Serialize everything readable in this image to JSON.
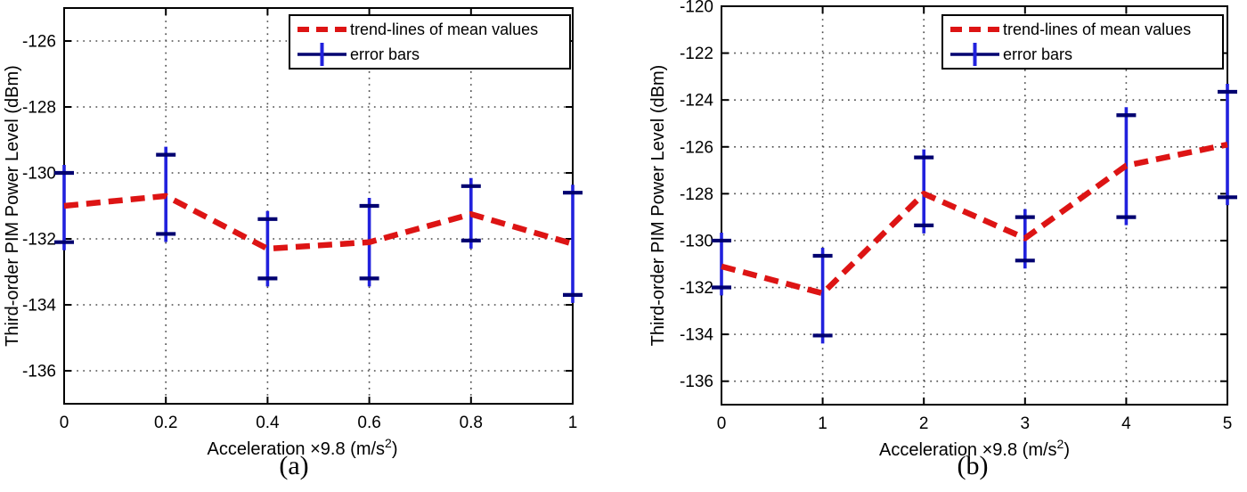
{
  "page": {
    "background": "#ffffff"
  },
  "colors": {
    "trend_red": "#dd1414",
    "errorbar_blue": "#2121dd",
    "errorbar_cap_navy": "#000070",
    "grid_dot": "#4a4a4a",
    "frame_black": "#000000",
    "text_black": "#000000",
    "legend_bg": "#ffffff"
  },
  "chart_data": [
    {
      "type": "line",
      "panel": "a",
      "caption": "(a)",
      "title": "",
      "xlabel": "Acceleration ×9.8 (m/s²)",
      "ylabel": "Third-order PIM Power Level (dBm)",
      "legend_entries": [
        "trend-lines of mean values",
        "error bars"
      ],
      "legend_position": "top-right",
      "grid": "dotted",
      "xlim": [
        0,
        1
      ],
      "ylim": [
        -137,
        -125
      ],
      "xticks": [
        0,
        0.2,
        0.4,
        0.6,
        0.8,
        1
      ],
      "xtick_labels": [
        "0",
        "0.2",
        "0.4",
        "0.6",
        "0.8",
        "1"
      ],
      "yticks": [
        -126,
        -128,
        -130,
        -132,
        -134,
        -136
      ],
      "x": [
        0,
        0.2,
        0.4,
        0.6,
        0.8,
        1
      ],
      "series": [
        {
          "name": "trend-lines of mean values",
          "type": "dashed-line",
          "values": [
            -131.0,
            -130.7,
            -132.3,
            -132.1,
            -131.25,
            -132.15
          ]
        },
        {
          "name": "error bars",
          "type": "errorbar",
          "upper": [
            -130.0,
            -129.45,
            -131.4,
            -131.0,
            -130.4,
            -130.6
          ],
          "lower": [
            -132.1,
            -131.85,
            -133.2,
            -133.2,
            -132.05,
            -133.7
          ]
        }
      ]
    },
    {
      "type": "line",
      "panel": "b",
      "caption": "(b)",
      "title": "",
      "xlabel": "Acceleration ×9.8 (m/s²)",
      "ylabel": "Third-order PIM Power Level (dBm)",
      "legend_entries": [
        "trend-lines of mean values",
        "error bars"
      ],
      "legend_position": "top-right",
      "grid": "dotted",
      "xlim": [
        0,
        5
      ],
      "ylim": [
        -137,
        -120
      ],
      "xticks": [
        0,
        1,
        2,
        3,
        4,
        5
      ],
      "xtick_labels": [
        "0",
        "1",
        "2",
        "3",
        "4",
        "5"
      ],
      "yticks": [
        -120,
        -122,
        -124,
        -126,
        -128,
        -130,
        -132,
        -134,
        -136
      ],
      "x": [
        0,
        1,
        2,
        3,
        4,
        5
      ],
      "series": [
        {
          "name": "trend-lines of mean values",
          "type": "dashed-line",
          "values": [
            -131.1,
            -132.25,
            -128.0,
            -129.9,
            -126.8,
            -125.9
          ]
        },
        {
          "name": "error bars",
          "type": "errorbar",
          "upper": [
            -130.0,
            -130.65,
            -126.45,
            -129.0,
            -124.65,
            -123.65
          ],
          "lower": [
            -132.0,
            -134.05,
            -129.35,
            -130.85,
            -129.0,
            -128.15
          ]
        }
      ]
    }
  ]
}
